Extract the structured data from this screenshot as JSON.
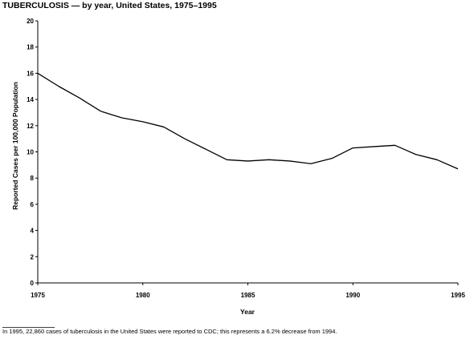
{
  "chart_data": {
    "type": "line",
    "title": "TUBERCULOSIS — by year, United States, 1975–1995",
    "xlabel": "Year",
    "ylabel": "Reported Cases per 100,000 Population",
    "xlim": [
      1975,
      1995
    ],
    "ylim": [
      0,
      20
    ],
    "x_ticks": [
      "1975",
      "1980",
      "1985",
      "1990",
      "1995"
    ],
    "y_ticks": [
      "0",
      "2",
      "4",
      "6",
      "8",
      "10",
      "12",
      "14",
      "16",
      "18",
      "20"
    ],
    "grid": false,
    "legend": "none",
    "series": [
      {
        "x": [
          1975,
          1976,
          1977,
          1978,
          1979,
          1980,
          1981,
          1982,
          1983,
          1984,
          1985,
          1986,
          1987,
          1988,
          1989,
          1990,
          1991,
          1992,
          1993,
          1994,
          1995
        ],
        "values": [
          16.0,
          15.0,
          14.1,
          13.1,
          12.6,
          12.3,
          11.9,
          11.0,
          10.2,
          9.4,
          9.3,
          9.4,
          9.3,
          9.1,
          9.5,
          10.3,
          10.4,
          10.5,
          9.8,
          9.4,
          8.7
        ]
      }
    ],
    "line_color": "#000000"
  },
  "footnote": "In 1995, 22,860 cases of tuberculosis in the United States were reported to CDC; this represents a 6.2% decrease from 1994."
}
